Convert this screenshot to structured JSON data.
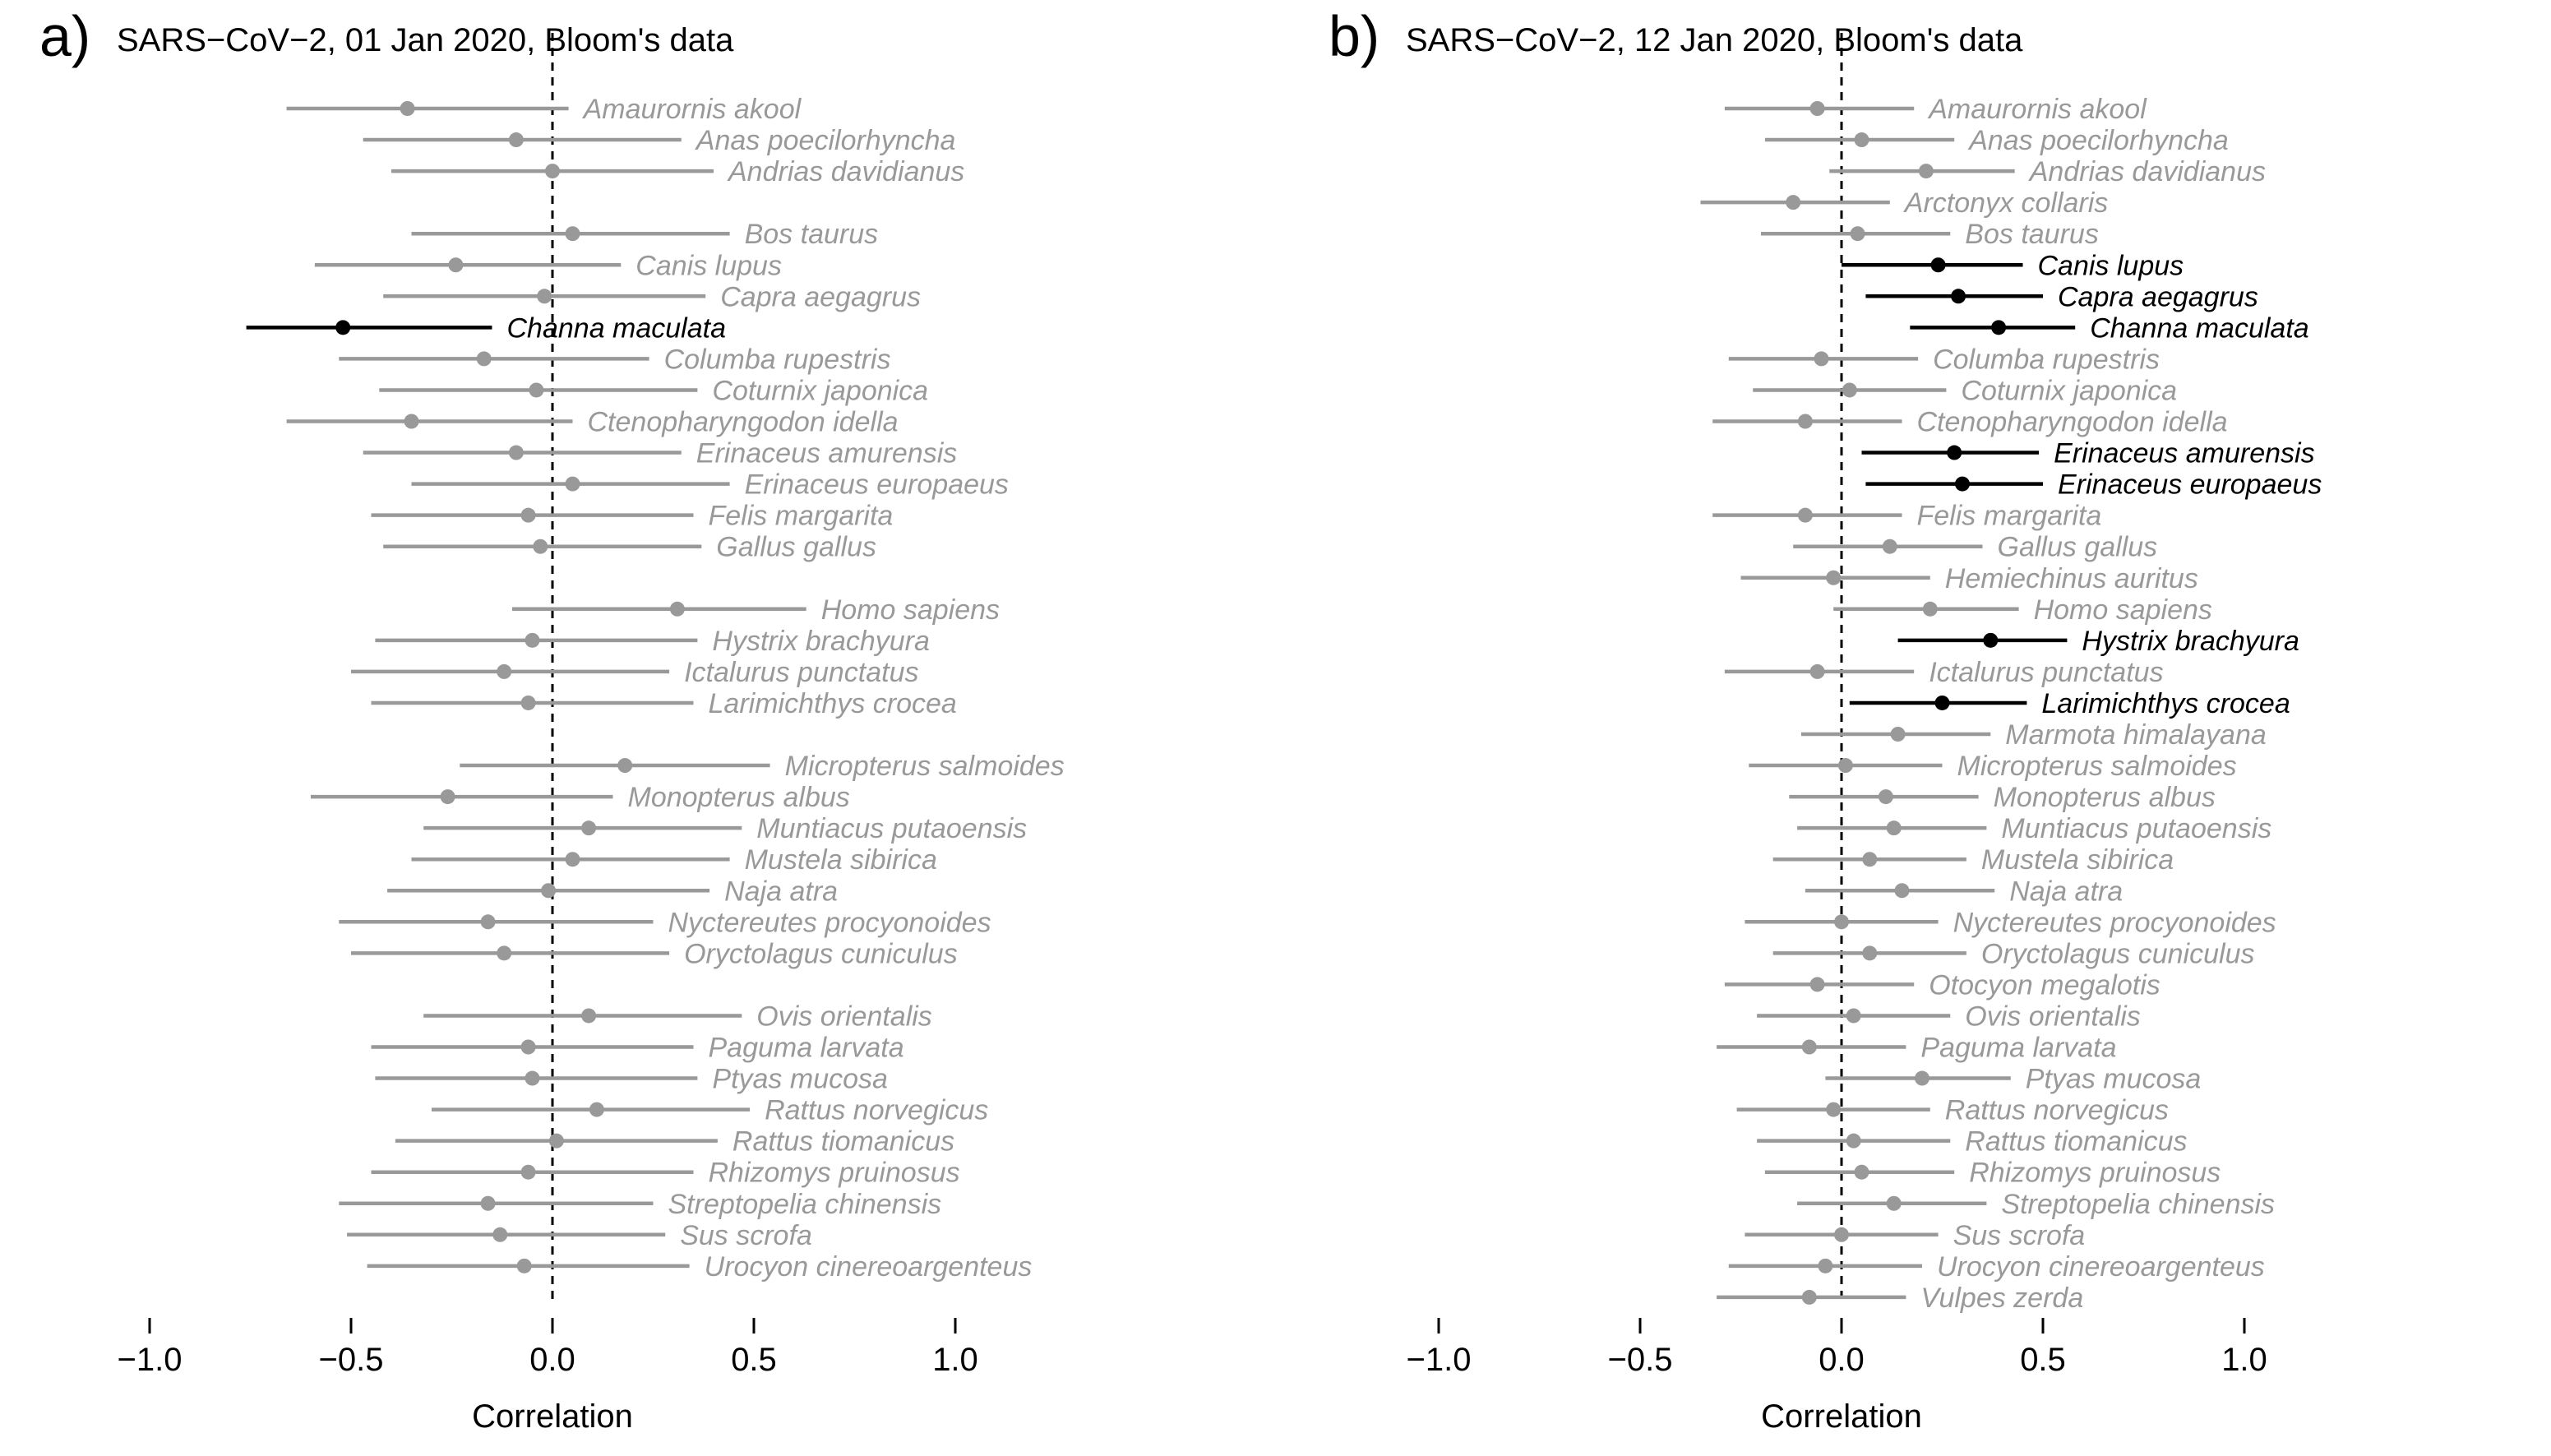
{
  "chart_data": [
    {
      "type": "forest",
      "panel_label": "a)",
      "title": "SARS−CoV−2, 01 Jan 2020, Bloom's data",
      "xlabel": "Correlation",
      "xlim": [
        -1.0,
        1.0
      ],
      "xticks": [
        -1.0,
        -0.5,
        0.0,
        0.5,
        1.0
      ],
      "xtick_labels": [
        "−1.0",
        "−0.5",
        "0.0",
        "0.5",
        "1.0"
      ],
      "reference_line": 0.0,
      "colors": {
        "significant": "#000000",
        "not_significant": "#999999"
      },
      "rows": [
        {
          "name": "Amaurornis akool",
          "slot": 0,
          "est": -0.36,
          "lo": -0.66,
          "hi": 0.04,
          "sig": false
        },
        {
          "name": "Anas poecilorhyncha",
          "slot": 1,
          "est": -0.09,
          "lo": -0.47,
          "hi": 0.32,
          "sig": false
        },
        {
          "name": "Andrias davidianus",
          "slot": 2,
          "est": 0.0,
          "lo": -0.4,
          "hi": 0.4,
          "sig": false
        },
        {
          "name": "Bos taurus",
          "slot": 4,
          "est": 0.05,
          "lo": -0.35,
          "hi": 0.44,
          "sig": false
        },
        {
          "name": "Canis lupus",
          "slot": 5,
          "est": -0.24,
          "lo": -0.59,
          "hi": 0.17,
          "sig": false
        },
        {
          "name": "Capra aegagrus",
          "slot": 6,
          "est": -0.02,
          "lo": -0.42,
          "hi": 0.38,
          "sig": false
        },
        {
          "name": "Channa maculata",
          "slot": 7,
          "est": -0.52,
          "lo": -0.76,
          "hi": -0.15,
          "sig": true
        },
        {
          "name": "Columba rupestris",
          "slot": 8,
          "est": -0.17,
          "lo": -0.53,
          "hi": 0.24,
          "sig": false
        },
        {
          "name": "Coturnix japonica",
          "slot": 9,
          "est": -0.04,
          "lo": -0.43,
          "hi": 0.36,
          "sig": false
        },
        {
          "name": "Ctenopharyngodon idella",
          "slot": 10,
          "est": -0.35,
          "lo": -0.66,
          "hi": 0.05,
          "sig": false
        },
        {
          "name": "Erinaceus amurensis",
          "slot": 11,
          "est": -0.09,
          "lo": -0.47,
          "hi": 0.32,
          "sig": false
        },
        {
          "name": "Erinaceus europaeus",
          "slot": 12,
          "est": 0.05,
          "lo": -0.35,
          "hi": 0.44,
          "sig": false
        },
        {
          "name": "Felis margarita",
          "slot": 13,
          "est": -0.06,
          "lo": -0.45,
          "hi": 0.35,
          "sig": false
        },
        {
          "name": "Gallus gallus",
          "slot": 14,
          "est": -0.03,
          "lo": -0.42,
          "hi": 0.37,
          "sig": false
        },
        {
          "name": "Homo sapiens",
          "slot": 16,
          "est": 0.31,
          "lo": -0.1,
          "hi": 0.63,
          "sig": false
        },
        {
          "name": "Hystrix brachyura",
          "slot": 17,
          "est": -0.05,
          "lo": -0.44,
          "hi": 0.36,
          "sig": false
        },
        {
          "name": "Ictalurus punctatus",
          "slot": 18,
          "est": -0.12,
          "lo": -0.5,
          "hi": 0.29,
          "sig": false
        },
        {
          "name": "Larimichthys crocea",
          "slot": 19,
          "est": -0.06,
          "lo": -0.45,
          "hi": 0.35,
          "sig": false
        },
        {
          "name": "Micropterus salmoides",
          "slot": 21,
          "est": 0.18,
          "lo": -0.23,
          "hi": 0.54,
          "sig": false
        },
        {
          "name": "Monopterus albus",
          "slot": 22,
          "est": -0.26,
          "lo": -0.6,
          "hi": 0.15,
          "sig": false
        },
        {
          "name": "Muntiacus putaoensis",
          "slot": 23,
          "est": 0.09,
          "lo": -0.32,
          "hi": 0.47,
          "sig": false
        },
        {
          "name": "Mustela sibirica",
          "slot": 24,
          "est": 0.05,
          "lo": -0.35,
          "hi": 0.44,
          "sig": false
        },
        {
          "name": "Naja atra",
          "slot": 25,
          "est": -0.01,
          "lo": -0.41,
          "hi": 0.39,
          "sig": false
        },
        {
          "name": "Nyctereutes procyonoides",
          "slot": 26,
          "est": -0.16,
          "lo": -0.53,
          "hi": 0.25,
          "sig": false
        },
        {
          "name": "Oryctolagus cuniculus",
          "slot": 27,
          "est": -0.12,
          "lo": -0.5,
          "hi": 0.29,
          "sig": false
        },
        {
          "name": "Ovis orientalis",
          "slot": 29,
          "est": 0.09,
          "lo": -0.32,
          "hi": 0.47,
          "sig": false
        },
        {
          "name": "Paguma larvata",
          "slot": 30,
          "est": -0.06,
          "lo": -0.45,
          "hi": 0.35,
          "sig": false
        },
        {
          "name": "Ptyas mucosa",
          "slot": 31,
          "est": -0.05,
          "lo": -0.44,
          "hi": 0.36,
          "sig": false
        },
        {
          "name": "Rattus norvegicus",
          "slot": 32,
          "est": 0.11,
          "lo": -0.3,
          "hi": 0.49,
          "sig": false
        },
        {
          "name": "Rattus tiomanicus",
          "slot": 33,
          "est": 0.01,
          "lo": -0.39,
          "hi": 0.41,
          "sig": false
        },
        {
          "name": "Rhizomys pruinosus",
          "slot": 34,
          "est": -0.06,
          "lo": -0.45,
          "hi": 0.35,
          "sig": false
        },
        {
          "name": "Streptopelia chinensis",
          "slot": 35,
          "est": -0.16,
          "lo": -0.53,
          "hi": 0.25,
          "sig": false
        },
        {
          "name": "Sus scrofa",
          "slot": 36,
          "est": -0.13,
          "lo": -0.51,
          "hi": 0.28,
          "sig": false
        },
        {
          "name": "Urocyon cinereoargenteus",
          "slot": 37,
          "est": -0.07,
          "lo": -0.46,
          "hi": 0.34,
          "sig": false
        }
      ]
    },
    {
      "type": "forest",
      "panel_label": "b)",
      "title": "SARS−CoV−2, 12 Jan 2020, Bloom's data",
      "xlabel": "Correlation",
      "xlim": [
        -1.0,
        1.0
      ],
      "xticks": [
        -1.0,
        -0.5,
        0.0,
        0.5,
        1.0
      ],
      "xtick_labels": [
        "−1.0",
        "−0.5",
        "0.0",
        "0.5",
        "1.0"
      ],
      "reference_line": 0.0,
      "colors": {
        "significant": "#000000",
        "not_significant": "#999999"
      },
      "rows": [
        {
          "name": "Amaurornis akool",
          "slot": 0,
          "est": -0.06,
          "lo": -0.29,
          "hi": 0.18,
          "sig": false
        },
        {
          "name": "Anas poecilorhyncha",
          "slot": 1,
          "est": 0.05,
          "lo": -0.19,
          "hi": 0.28,
          "sig": false
        },
        {
          "name": "Andrias davidianus",
          "slot": 2,
          "est": 0.21,
          "lo": -0.03,
          "hi": 0.43,
          "sig": false
        },
        {
          "name": "Arctonyx collaris",
          "slot": 3,
          "est": -0.12,
          "lo": -0.35,
          "hi": 0.12,
          "sig": false
        },
        {
          "name": "Bos taurus",
          "slot": 4,
          "est": 0.04,
          "lo": -0.2,
          "hi": 0.27,
          "sig": false
        },
        {
          "name": "Canis lupus",
          "slot": 5,
          "est": 0.24,
          "lo": 0.0,
          "hi": 0.45,
          "sig": true
        },
        {
          "name": "Capra aegagrus",
          "slot": 6,
          "est": 0.29,
          "lo": 0.06,
          "hi": 0.5,
          "sig": true
        },
        {
          "name": "Channa maculata",
          "slot": 7,
          "est": 0.39,
          "lo": 0.17,
          "hi": 0.58,
          "sig": true
        },
        {
          "name": "Columba rupestris",
          "slot": 8,
          "est": -0.05,
          "lo": -0.28,
          "hi": 0.19,
          "sig": false
        },
        {
          "name": "Coturnix japonica",
          "slot": 9,
          "est": 0.02,
          "lo": -0.22,
          "hi": 0.26,
          "sig": false
        },
        {
          "name": "Ctenopharyngodon idella",
          "slot": 10,
          "est": -0.09,
          "lo": -0.32,
          "hi": 0.15,
          "sig": false
        },
        {
          "name": "Erinaceus amurensis",
          "slot": 11,
          "est": 0.28,
          "lo": 0.05,
          "hi": 0.49,
          "sig": true
        },
        {
          "name": "Erinaceus europaeus",
          "slot": 12,
          "est": 0.3,
          "lo": 0.06,
          "hi": 0.5,
          "sig": true
        },
        {
          "name": "Felis margarita",
          "slot": 13,
          "est": -0.09,
          "lo": -0.32,
          "hi": 0.15,
          "sig": false
        },
        {
          "name": "Gallus gallus",
          "slot": 14,
          "est": 0.12,
          "lo": -0.12,
          "hi": 0.35,
          "sig": false
        },
        {
          "name": "Hemiechinus auritus",
          "slot": 15,
          "est": -0.02,
          "lo": -0.25,
          "hi": 0.22,
          "sig": false
        },
        {
          "name": "Homo sapiens",
          "slot": 16,
          "est": 0.22,
          "lo": -0.02,
          "hi": 0.44,
          "sig": false
        },
        {
          "name": "Hystrix brachyura",
          "slot": 17,
          "est": 0.37,
          "lo": 0.14,
          "hi": 0.56,
          "sig": true
        },
        {
          "name": "Ictalurus punctatus",
          "slot": 18,
          "est": -0.06,
          "lo": -0.29,
          "hi": 0.18,
          "sig": false
        },
        {
          "name": "Larimichthys crocea",
          "slot": 19,
          "est": 0.25,
          "lo": 0.02,
          "hi": 0.46,
          "sig": true
        },
        {
          "name": "Marmota himalayana",
          "slot": 20,
          "est": 0.14,
          "lo": -0.1,
          "hi": 0.37,
          "sig": false
        },
        {
          "name": "Micropterus salmoides",
          "slot": 21,
          "est": 0.01,
          "lo": -0.23,
          "hi": 0.25,
          "sig": false
        },
        {
          "name": "Monopterus albus",
          "slot": 22,
          "est": 0.11,
          "lo": -0.13,
          "hi": 0.34,
          "sig": false
        },
        {
          "name": "Muntiacus putaoensis",
          "slot": 23,
          "est": 0.13,
          "lo": -0.11,
          "hi": 0.36,
          "sig": false
        },
        {
          "name": "Mustela sibirica",
          "slot": 24,
          "est": 0.07,
          "lo": -0.17,
          "hi": 0.31,
          "sig": false
        },
        {
          "name": "Naja atra",
          "slot": 25,
          "est": 0.15,
          "lo": -0.09,
          "hi": 0.38,
          "sig": false
        },
        {
          "name": "Nyctereutes procyonoides",
          "slot": 26,
          "est": 0.0,
          "lo": -0.24,
          "hi": 0.24,
          "sig": false
        },
        {
          "name": "Oryctolagus cuniculus",
          "slot": 27,
          "est": 0.07,
          "lo": -0.17,
          "hi": 0.31,
          "sig": false
        },
        {
          "name": "Otocyon megalotis",
          "slot": 28,
          "est": -0.06,
          "lo": -0.29,
          "hi": 0.18,
          "sig": false
        },
        {
          "name": "Ovis orientalis",
          "slot": 29,
          "est": 0.03,
          "lo": -0.21,
          "hi": 0.27,
          "sig": false
        },
        {
          "name": "Paguma larvata",
          "slot": 30,
          "est": -0.08,
          "lo": -0.31,
          "hi": 0.16,
          "sig": false
        },
        {
          "name": "Ptyas mucosa",
          "slot": 31,
          "est": 0.2,
          "lo": -0.04,
          "hi": 0.42,
          "sig": false
        },
        {
          "name": "Rattus norvegicus",
          "slot": 32,
          "est": -0.02,
          "lo": -0.26,
          "hi": 0.22,
          "sig": false
        },
        {
          "name": "Rattus tiomanicus",
          "slot": 33,
          "est": 0.03,
          "lo": -0.21,
          "hi": 0.27,
          "sig": false
        },
        {
          "name": "Rhizomys pruinosus",
          "slot": 34,
          "est": 0.05,
          "lo": -0.19,
          "hi": 0.28,
          "sig": false
        },
        {
          "name": "Streptopelia chinensis",
          "slot": 35,
          "est": 0.13,
          "lo": -0.11,
          "hi": 0.36,
          "sig": false
        },
        {
          "name": "Sus scrofa",
          "slot": 36,
          "est": 0.0,
          "lo": -0.24,
          "hi": 0.24,
          "sig": false
        },
        {
          "name": "Urocyon cinereoargenteus",
          "slot": 37,
          "est": -0.04,
          "lo": -0.28,
          "hi": 0.2,
          "sig": false
        },
        {
          "name": "Vulpes zerda",
          "slot": 38,
          "est": -0.08,
          "lo": -0.31,
          "hi": 0.16,
          "sig": false
        }
      ]
    }
  ]
}
